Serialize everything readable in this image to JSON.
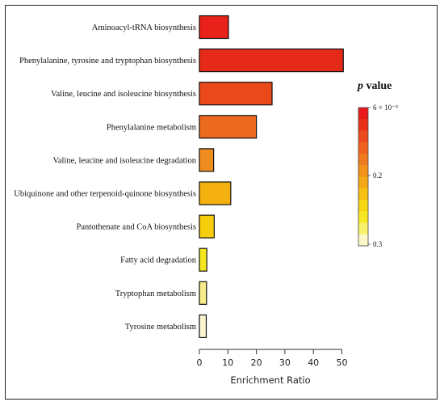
{
  "chart_data": {
    "type": "bar",
    "orientation": "horizontal",
    "categories": [
      "Aminoacyl-tRNA biosynthesis",
      "Phenylalanine, tyrosine and tryptophan biosynthesis",
      "Valine, leucine and isoleucine biosynthesis",
      "Phenylalanine metabolism",
      "Valine, leucine and isoleucine degradation",
      "Ubiquinone and other terpenoid-quinone biosynthesis",
      "Pantothenate and CoA biosynthesis",
      "Fatty acid degradation",
      "Tryptophan metabolism",
      "Tyrosine metabolism"
    ],
    "values": [
      10.2,
      50.5,
      25.5,
      20.0,
      5.0,
      11.0,
      5.2,
      2.6,
      2.5,
      2.4
    ],
    "bar_colors": [
      "#e8211a",
      "#e52a1a",
      "#e9491b",
      "#ec6a1d",
      "#ef8c1f",
      "#f4b00f",
      "#f5cd0a",
      "#f4e61f",
      "#f6ed8a",
      "#fbf5cf"
    ],
    "xlabel": "Enrichment Ratio",
    "xticks": [
      0,
      10,
      20,
      30,
      40,
      50
    ],
    "xlim": [
      0,
      52
    ],
    "grid": false,
    "legend": {
      "title_italic": "p",
      "title_rest": " value",
      "placement": "right",
      "tick_labels": [
        "6 × 10⁻⁵",
        "0.2",
        "0.3"
      ],
      "colorbar_colors": [
        "#e8191a",
        "#ea321b",
        "#ec4a1c",
        "#ee621d",
        "#f07a1e",
        "#f2921a",
        "#f4aa16",
        "#f6c012",
        "#f7d612",
        "#f7e826",
        "#f8f26a",
        "#fbf8c8"
      ]
    }
  }
}
